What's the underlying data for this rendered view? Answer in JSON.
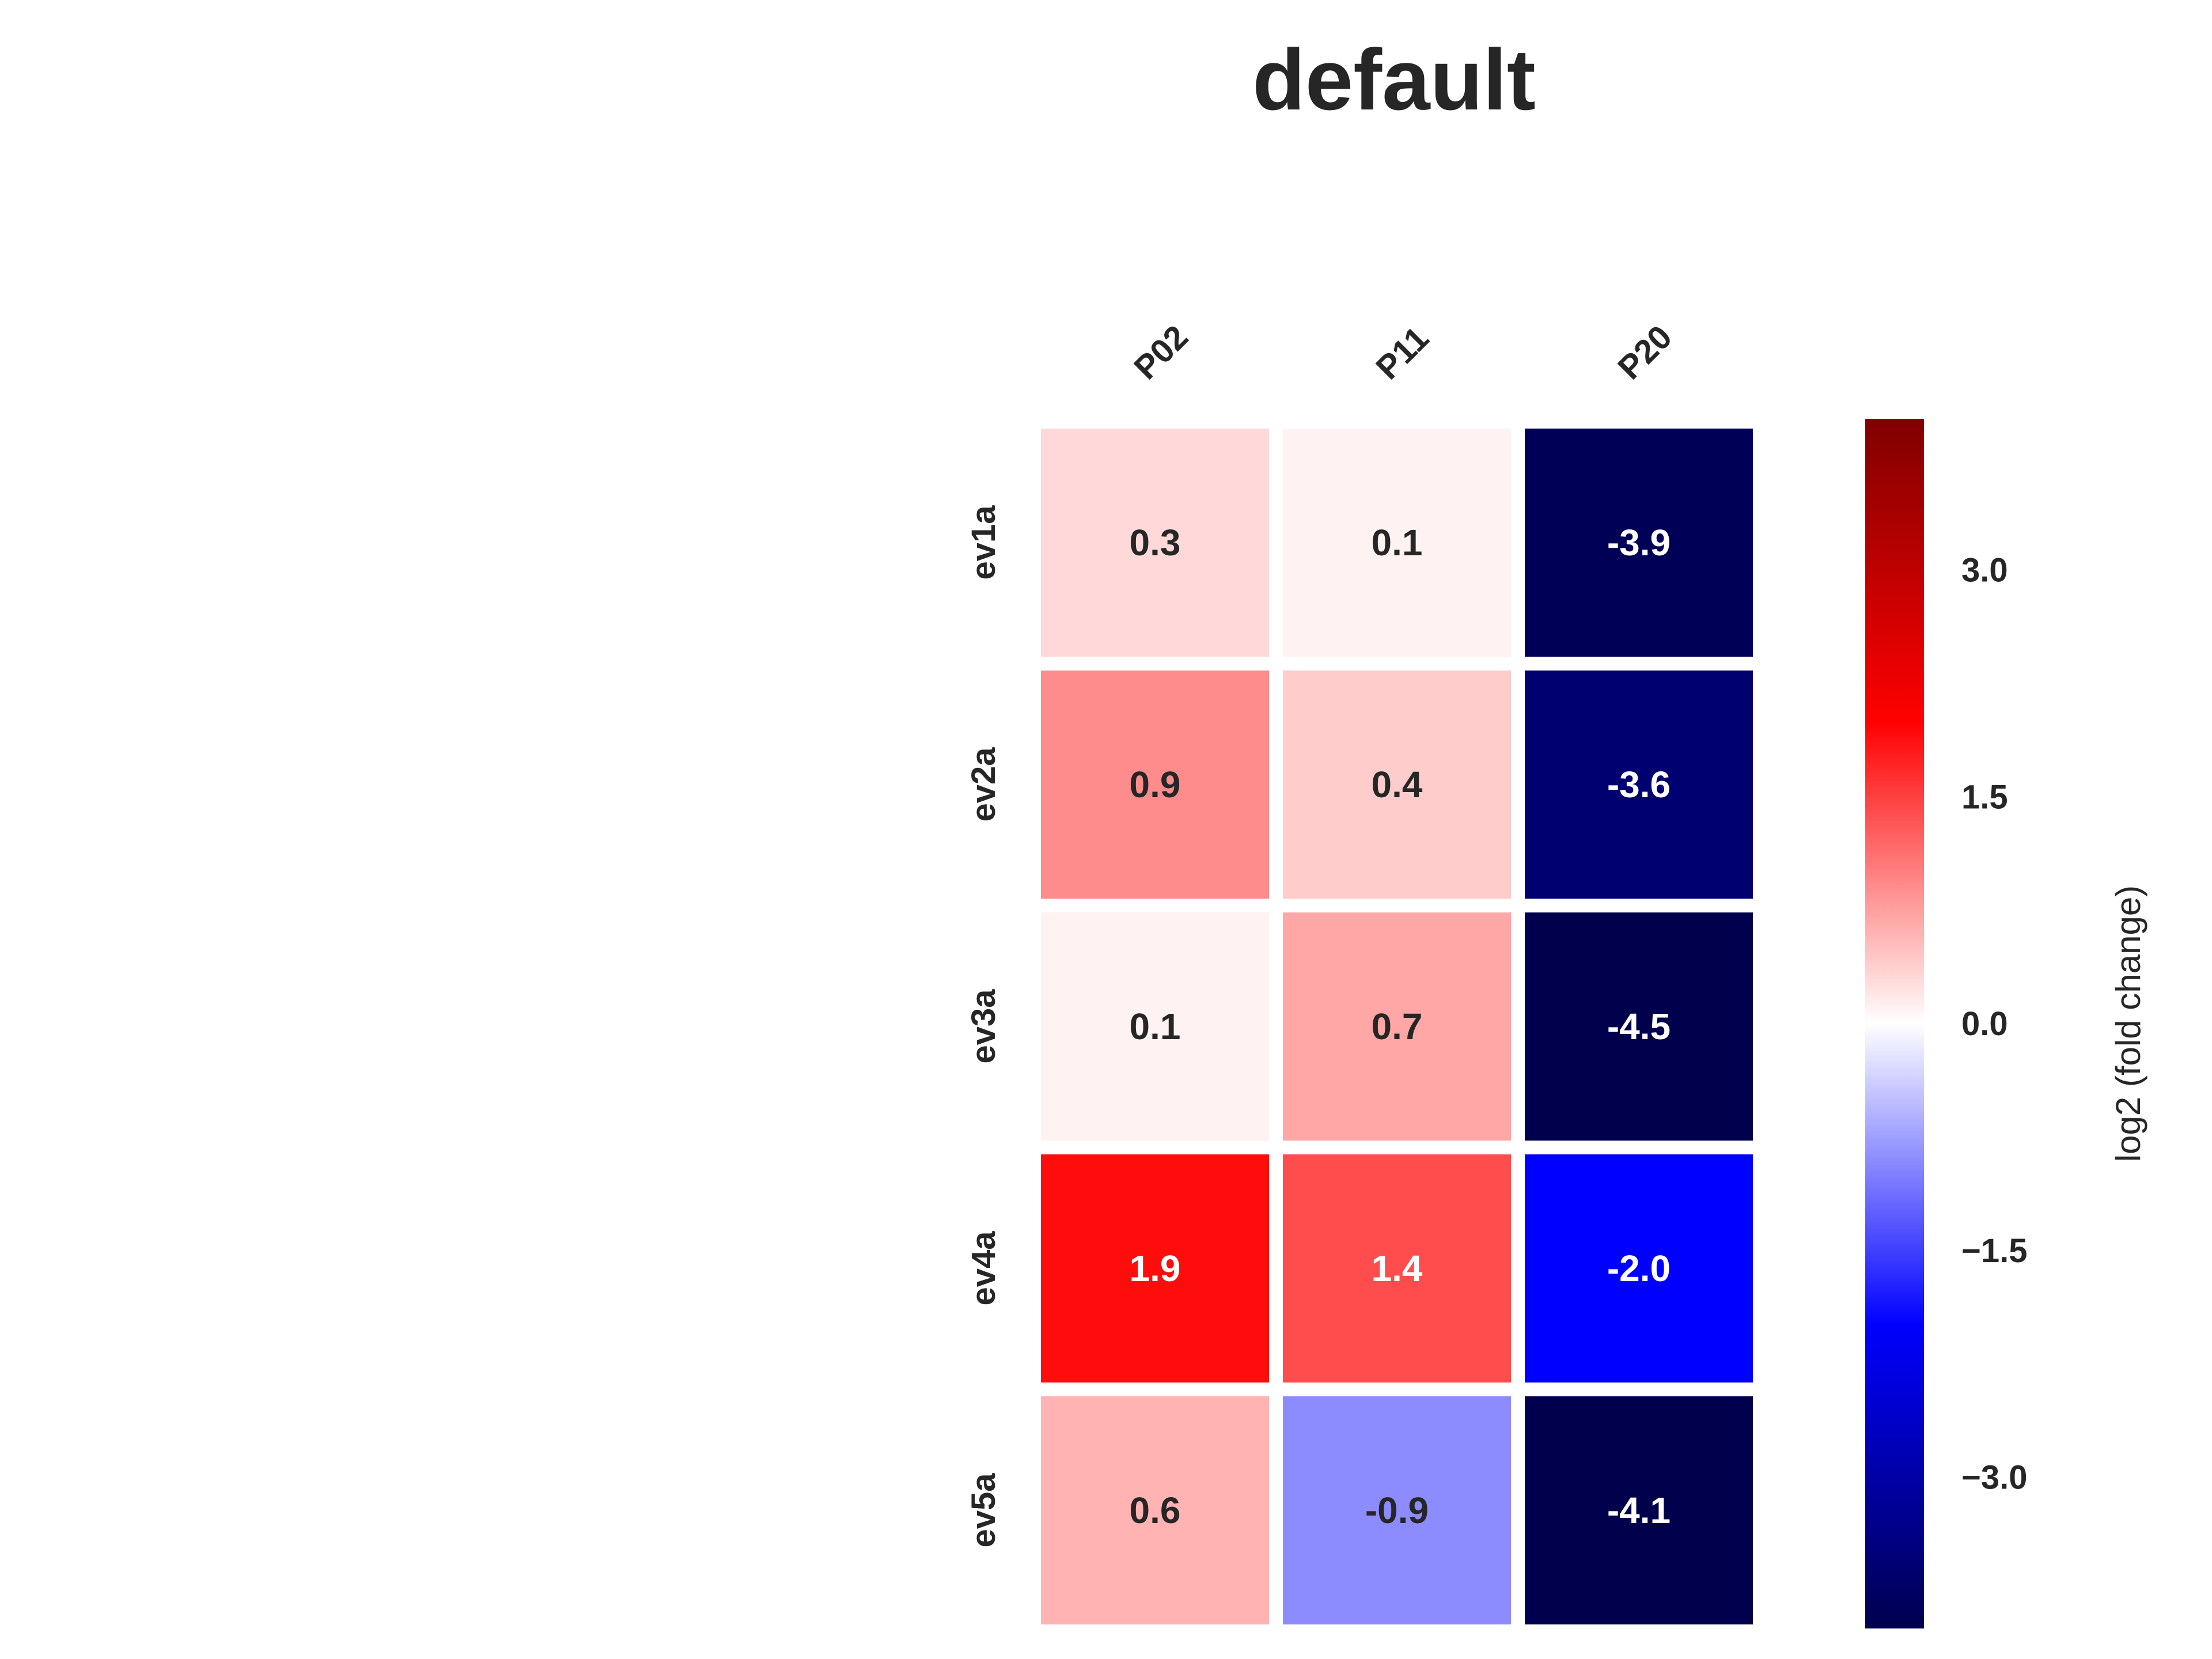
{
  "chart_data": {
    "type": "heatmap",
    "title": "default",
    "columns": [
      "P02",
      "P11",
      "P20"
    ],
    "rows": [
      "ev1a",
      "ev2a",
      "ev3a",
      "ev4a",
      "ev5a"
    ],
    "values": [
      [
        0.3,
        0.1,
        -3.9
      ],
      [
        0.9,
        0.4,
        -3.6
      ],
      [
        0.1,
        0.7,
        -4.5
      ],
      [
        1.9,
        1.4,
        -2.0
      ],
      [
        0.6,
        -0.9,
        -4.1
      ]
    ],
    "cell_labels": [
      [
        "0.3",
        "0.1",
        "-3.9"
      ],
      [
        "0.9",
        "0.4",
        "-3.6"
      ],
      [
        "0.1",
        "0.7",
        "-4.5"
      ],
      [
        "1.9",
        "1.4",
        "-2.0"
      ],
      [
        "0.6",
        "-0.9",
        "-4.1"
      ]
    ],
    "colormap": "seismic",
    "colormap_stops": [
      "#00004d",
      "#0000ff",
      "#ffffff",
      "#ff0000",
      "#800000"
    ],
    "vmin": -4.0,
    "vmax": 4.0,
    "colorbar": {
      "label": "log2 (fold change)",
      "ticks": [
        3.0,
        1.5,
        0.0,
        -1.5,
        -3.0
      ],
      "tick_labels": [
        "3.0",
        "1.5",
        "0.0",
        "−1.5",
        "−3.0"
      ]
    },
    "grid": false,
    "x_tick_position": "top"
  }
}
